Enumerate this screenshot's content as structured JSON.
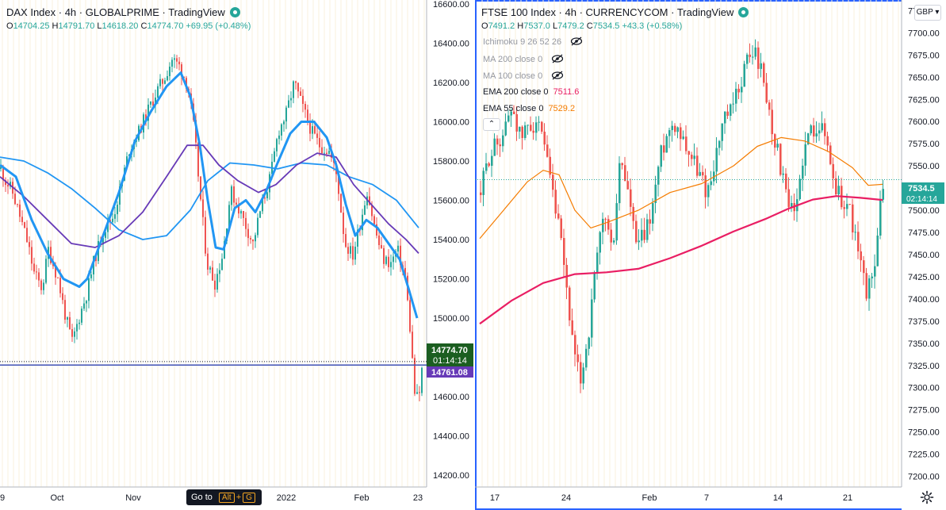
{
  "left": {
    "title": "DAX Index · 4h · GLOBALPRIME · TradingView",
    "ohlc": [
      {
        "k": "O",
        "v": "14704.25"
      },
      {
        "k": "H",
        "v": "14791.70"
      },
      {
        "k": "L",
        "v": "14618.20"
      },
      {
        "k": "C",
        "v": "14774.70"
      },
      {
        "k": "",
        "v": "+69.95 (+0.48%)"
      }
    ],
    "last_price": "14774.70",
    "countdown": "01:14:14",
    "line_price": "14761.08",
    "goto": {
      "label": "Go to",
      "key1": "Alt",
      "plus": "+",
      "key2": "G"
    }
  },
  "right": {
    "title": "FTSE 100 Index · 4h · CURRENCYCOM · TradingView",
    "ohlc": [
      {
        "k": "O",
        "v": "7491.2"
      },
      {
        "k": "H",
        "v": "7537.0"
      },
      {
        "k": "L",
        "v": "7479.2"
      },
      {
        "k": "C",
        "v": "7534.5"
      },
      {
        "k": "",
        "v": "+43.3 (+0.58%)"
      }
    ],
    "indicators": [
      {
        "label": "Ichimoku 9 26 52 26",
        "value": "",
        "hidden": true,
        "color": "#9598a1"
      },
      {
        "label": "MA 200 close 0",
        "value": "",
        "hidden": true,
        "color": "#9598a1"
      },
      {
        "label": "MA 100 close 0",
        "value": "",
        "hidden": true,
        "color": "#9598a1"
      },
      {
        "label": "EMA 200 close 0",
        "value": "7511.6",
        "hidden": false,
        "color": "#e91e63"
      },
      {
        "label": "EMA 55 close 0",
        "value": "7529.2",
        "hidden": false,
        "color": "#f57c00"
      }
    ],
    "collapse_glyph": "⌃",
    "currency": "GBP ▾",
    "last_price": "7534.5",
    "countdown": "02:14:14"
  },
  "chart_data": [
    {
      "type": "line",
      "title": "DAX Index · 4h · GLOBALPRIME · TradingView",
      "ylim": [
        14140,
        16620
      ],
      "y_ticks": [
        "16600.00",
        "16400.00",
        "16200.00",
        "16000.00",
        "15800.00",
        "15600.00",
        "15400.00",
        "15200.00",
        "15000.00",
        "14800.00",
        "14600.00",
        "14400.00",
        "14200.00"
      ],
      "x_ticks": [
        "9",
        "Oct",
        "Nov",
        "2022",
        "Feb",
        "23"
      ],
      "horizontal_line": 14761.08,
      "colors": {
        "up": "#26a69a",
        "down": "#ef5350",
        "blue": "#2196f3",
        "purple": "#673ab7",
        "cyan": "#4dd0e1",
        "hline": "#3f51b5",
        "label_green": "#1b5e20",
        "label_purple": "#673ab7"
      },
      "close_series": [
        [
          0,
          15760
        ],
        [
          6,
          15700
        ],
        [
          14,
          15650
        ],
        [
          24,
          15520
        ],
        [
          34,
          15380
        ],
        [
          42,
          15230
        ],
        [
          52,
          15150
        ],
        [
          60,
          15350
        ],
        [
          72,
          15200
        ],
        [
          82,
          15000
        ],
        [
          90,
          14880
        ],
        [
          100,
          15020
        ],
        [
          108,
          15120
        ],
        [
          118,
          15300
        ],
        [
          130,
          15450
        ],
        [
          142,
          15520
        ],
        [
          152,
          15680
        ],
        [
          162,
          15860
        ],
        [
          174,
          15950
        ],
        [
          185,
          16050
        ],
        [
          196,
          16150
        ],
        [
          206,
          16220
        ],
        [
          216,
          16320
        ],
        [
          226,
          16280
        ],
        [
          236,
          16180
        ],
        [
          244,
          15950
        ],
        [
          252,
          15600
        ],
        [
          260,
          15280
        ],
        [
          270,
          15180
        ],
        [
          280,
          15330
        ],
        [
          290,
          15650
        ],
        [
          300,
          15560
        ],
        [
          308,
          15480
        ],
        [
          318,
          15380
        ],
        [
          328,
          15560
        ],
        [
          340,
          15720
        ],
        [
          350,
          15950
        ],
        [
          360,
          16040
        ],
        [
          370,
          16200
        ],
        [
          380,
          16080
        ],
        [
          392,
          15950
        ],
        [
          402,
          15880
        ],
        [
          414,
          15850
        ],
        [
          424,
          15720
        ],
        [
          434,
          15380
        ],
        [
          444,
          15320
        ],
        [
          454,
          15500
        ],
        [
          462,
          15650
        ],
        [
          472,
          15450
        ],
        [
          482,
          15300
        ],
        [
          492,
          15280
        ],
        [
          500,
          15350
        ],
        [
          510,
          15210
        ],
        [
          516,
          14950
        ],
        [
          522,
          14620
        ],
        [
          527,
          14580
        ],
        [
          532,
          14774.7
        ]
      ],
      "ma_fast": [
        [
          0,
          15780
        ],
        [
          20,
          15720
        ],
        [
          40,
          15500
        ],
        [
          60,
          15330
        ],
        [
          80,
          15200
        ],
        [
          100,
          15160
        ],
        [
          110,
          15200
        ],
        [
          130,
          15420
        ],
        [
          150,
          15640
        ],
        [
          170,
          15900
        ],
        [
          190,
          16050
        ],
        [
          210,
          16180
        ],
        [
          228,
          16250
        ],
        [
          240,
          16130
        ],
        [
          252,
          15880
        ],
        [
          262,
          15600
        ],
        [
          272,
          15360
        ],
        [
          282,
          15350
        ],
        [
          296,
          15560
        ],
        [
          310,
          15600
        ],
        [
          322,
          15540
        ],
        [
          335,
          15640
        ],
        [
          350,
          15790
        ],
        [
          366,
          15940
        ],
        [
          380,
          16000
        ],
        [
          396,
          16000
        ],
        [
          412,
          15920
        ],
        [
          424,
          15780
        ],
        [
          436,
          15580
        ],
        [
          448,
          15420
        ],
        [
          462,
          15500
        ],
        [
          476,
          15460
        ],
        [
          490,
          15380
        ],
        [
          504,
          15300
        ],
        [
          516,
          15140
        ],
        [
          526,
          15000
        ]
      ],
      "ma_mid": [
        [
          0,
          15720
        ],
        [
          30,
          15620
        ],
        [
          60,
          15500
        ],
        [
          90,
          15380
        ],
        [
          120,
          15360
        ],
        [
          150,
          15420
        ],
        [
          180,
          15540
        ],
        [
          210,
          15720
        ],
        [
          236,
          15880
        ],
        [
          256,
          15880
        ],
        [
          276,
          15780
        ],
        [
          300,
          15700
        ],
        [
          326,
          15640
        ],
        [
          348,
          15680
        ],
        [
          374,
          15780
        ],
        [
          400,
          15840
        ],
        [
          424,
          15820
        ],
        [
          446,
          15680
        ],
        [
          468,
          15580
        ],
        [
          490,
          15480
        ],
        [
          512,
          15400
        ],
        [
          528,
          15330
        ]
      ],
      "ma_slow": [
        [
          0,
          15820
        ],
        [
          30,
          15800
        ],
        [
          60,
          15740
        ],
        [
          90,
          15660
        ],
        [
          120,
          15560
        ],
        [
          150,
          15450
        ],
        [
          180,
          15400
        ],
        [
          210,
          15420
        ],
        [
          240,
          15550
        ],
        [
          262,
          15700
        ],
        [
          290,
          15790
        ],
        [
          320,
          15780
        ],
        [
          350,
          15760
        ],
        [
          380,
          15790
        ],
        [
          412,
          15780
        ],
        [
          440,
          15720
        ],
        [
          470,
          15680
        ],
        [
          500,
          15600
        ],
        [
          528,
          15460
        ]
      ]
    },
    {
      "type": "line",
      "title": "FTSE 100 Index · 4h · CURRENCYCOM · TradingView",
      "ylim": [
        7188,
        7737
      ],
      "y_ticks": [
        "7725.00",
        "7700.00",
        "7675.00",
        "7650.00",
        "7625.00",
        "7600.00",
        "7575.00",
        "7550.00",
        "7525.00",
        "7500.00",
        "7475.00",
        "7450.00",
        "7425.00",
        "7400.00",
        "7375.00",
        "7350.00",
        "7325.00",
        "7300.00",
        "7275.00",
        "7250.00",
        "7225.00",
        "7200.00"
      ],
      "x_ticks": [
        "17",
        "24",
        "Feb",
        "7",
        "14",
        "21"
      ],
      "colors": {
        "up": "#26a69a",
        "down": "#ef5350",
        "ema200": "#e91e63",
        "ema55": "#f57c00",
        "price_label": "#26a69a"
      },
      "close_series": [
        [
          0,
          7520
        ],
        [
          10,
          7560
        ],
        [
          20,
          7575
        ],
        [
          30,
          7590
        ],
        [
          40,
          7620
        ],
        [
          50,
          7580
        ],
        [
          60,
          7595
        ],
        [
          70,
          7600
        ],
        [
          80,
          7570
        ],
        [
          90,
          7520
        ],
        [
          100,
          7470
        ],
        [
          110,
          7400
        ],
        [
          118,
          7330
        ],
        [
          126,
          7310
        ],
        [
          136,
          7360
        ],
        [
          146,
          7440
        ],
        [
          156,
          7500
        ],
        [
          166,
          7450
        ],
        [
          176,
          7560
        ],
        [
          186,
          7520
        ],
        [
          196,
          7460
        ],
        [
          206,
          7470
        ],
        [
          216,
          7500
        ],
        [
          226,
          7560
        ],
        [
          236,
          7590
        ],
        [
          246,
          7600
        ],
        [
          256,
          7580
        ],
        [
          266,
          7560
        ],
        [
          276,
          7540
        ],
        [
          286,
          7520
        ],
        [
          296,
          7560
        ],
        [
          306,
          7600
        ],
        [
          316,
          7610
        ],
        [
          326,
          7640
        ],
        [
          336,
          7670
        ],
        [
          346,
          7680
        ],
        [
          356,
          7650
        ],
        [
          366,
          7600
        ],
        [
          376,
          7560
        ],
        [
          386,
          7510
        ],
        [
          396,
          7490
        ],
        [
          406,
          7560
        ],
        [
          416,
          7590
        ],
        [
          426,
          7600
        ],
        [
          436,
          7580
        ],
        [
          446,
          7530
        ],
        [
          456,
          7510
        ],
        [
          466,
          7500
        ],
        [
          476,
          7450
        ],
        [
          486,
          7410
        ],
        [
          494,
          7420
        ],
        [
          500,
          7470
        ],
        [
          508,
          7534.5
        ]
      ],
      "ema200": [
        [
          0,
          7372
        ],
        [
          40,
          7398
        ],
        [
          80,
          7418
        ],
        [
          120,
          7428
        ],
        [
          160,
          7430
        ],
        [
          200,
          7434
        ],
        [
          240,
          7446
        ],
        [
          280,
          7460
        ],
        [
          320,
          7476
        ],
        [
          360,
          7490
        ],
        [
          390,
          7502
        ],
        [
          420,
          7512
        ],
        [
          450,
          7516
        ],
        [
          480,
          7514
        ],
        [
          508,
          7511.6
        ]
      ],
      "ema55": [
        [
          0,
          7468
        ],
        [
          30,
          7500
        ],
        [
          60,
          7532
        ],
        [
          80,
          7545
        ],
        [
          100,
          7540
        ],
        [
          120,
          7500
        ],
        [
          140,
          7480
        ],
        [
          160,
          7486
        ],
        [
          200,
          7500
        ],
        [
          240,
          7520
        ],
        [
          280,
          7530
        ],
        [
          320,
          7550
        ],
        [
          350,
          7572
        ],
        [
          380,
          7582
        ],
        [
          410,
          7578
        ],
        [
          440,
          7566
        ],
        [
          470,
          7548
        ],
        [
          490,
          7528
        ],
        [
          508,
          7529.2
        ]
      ]
    }
  ]
}
